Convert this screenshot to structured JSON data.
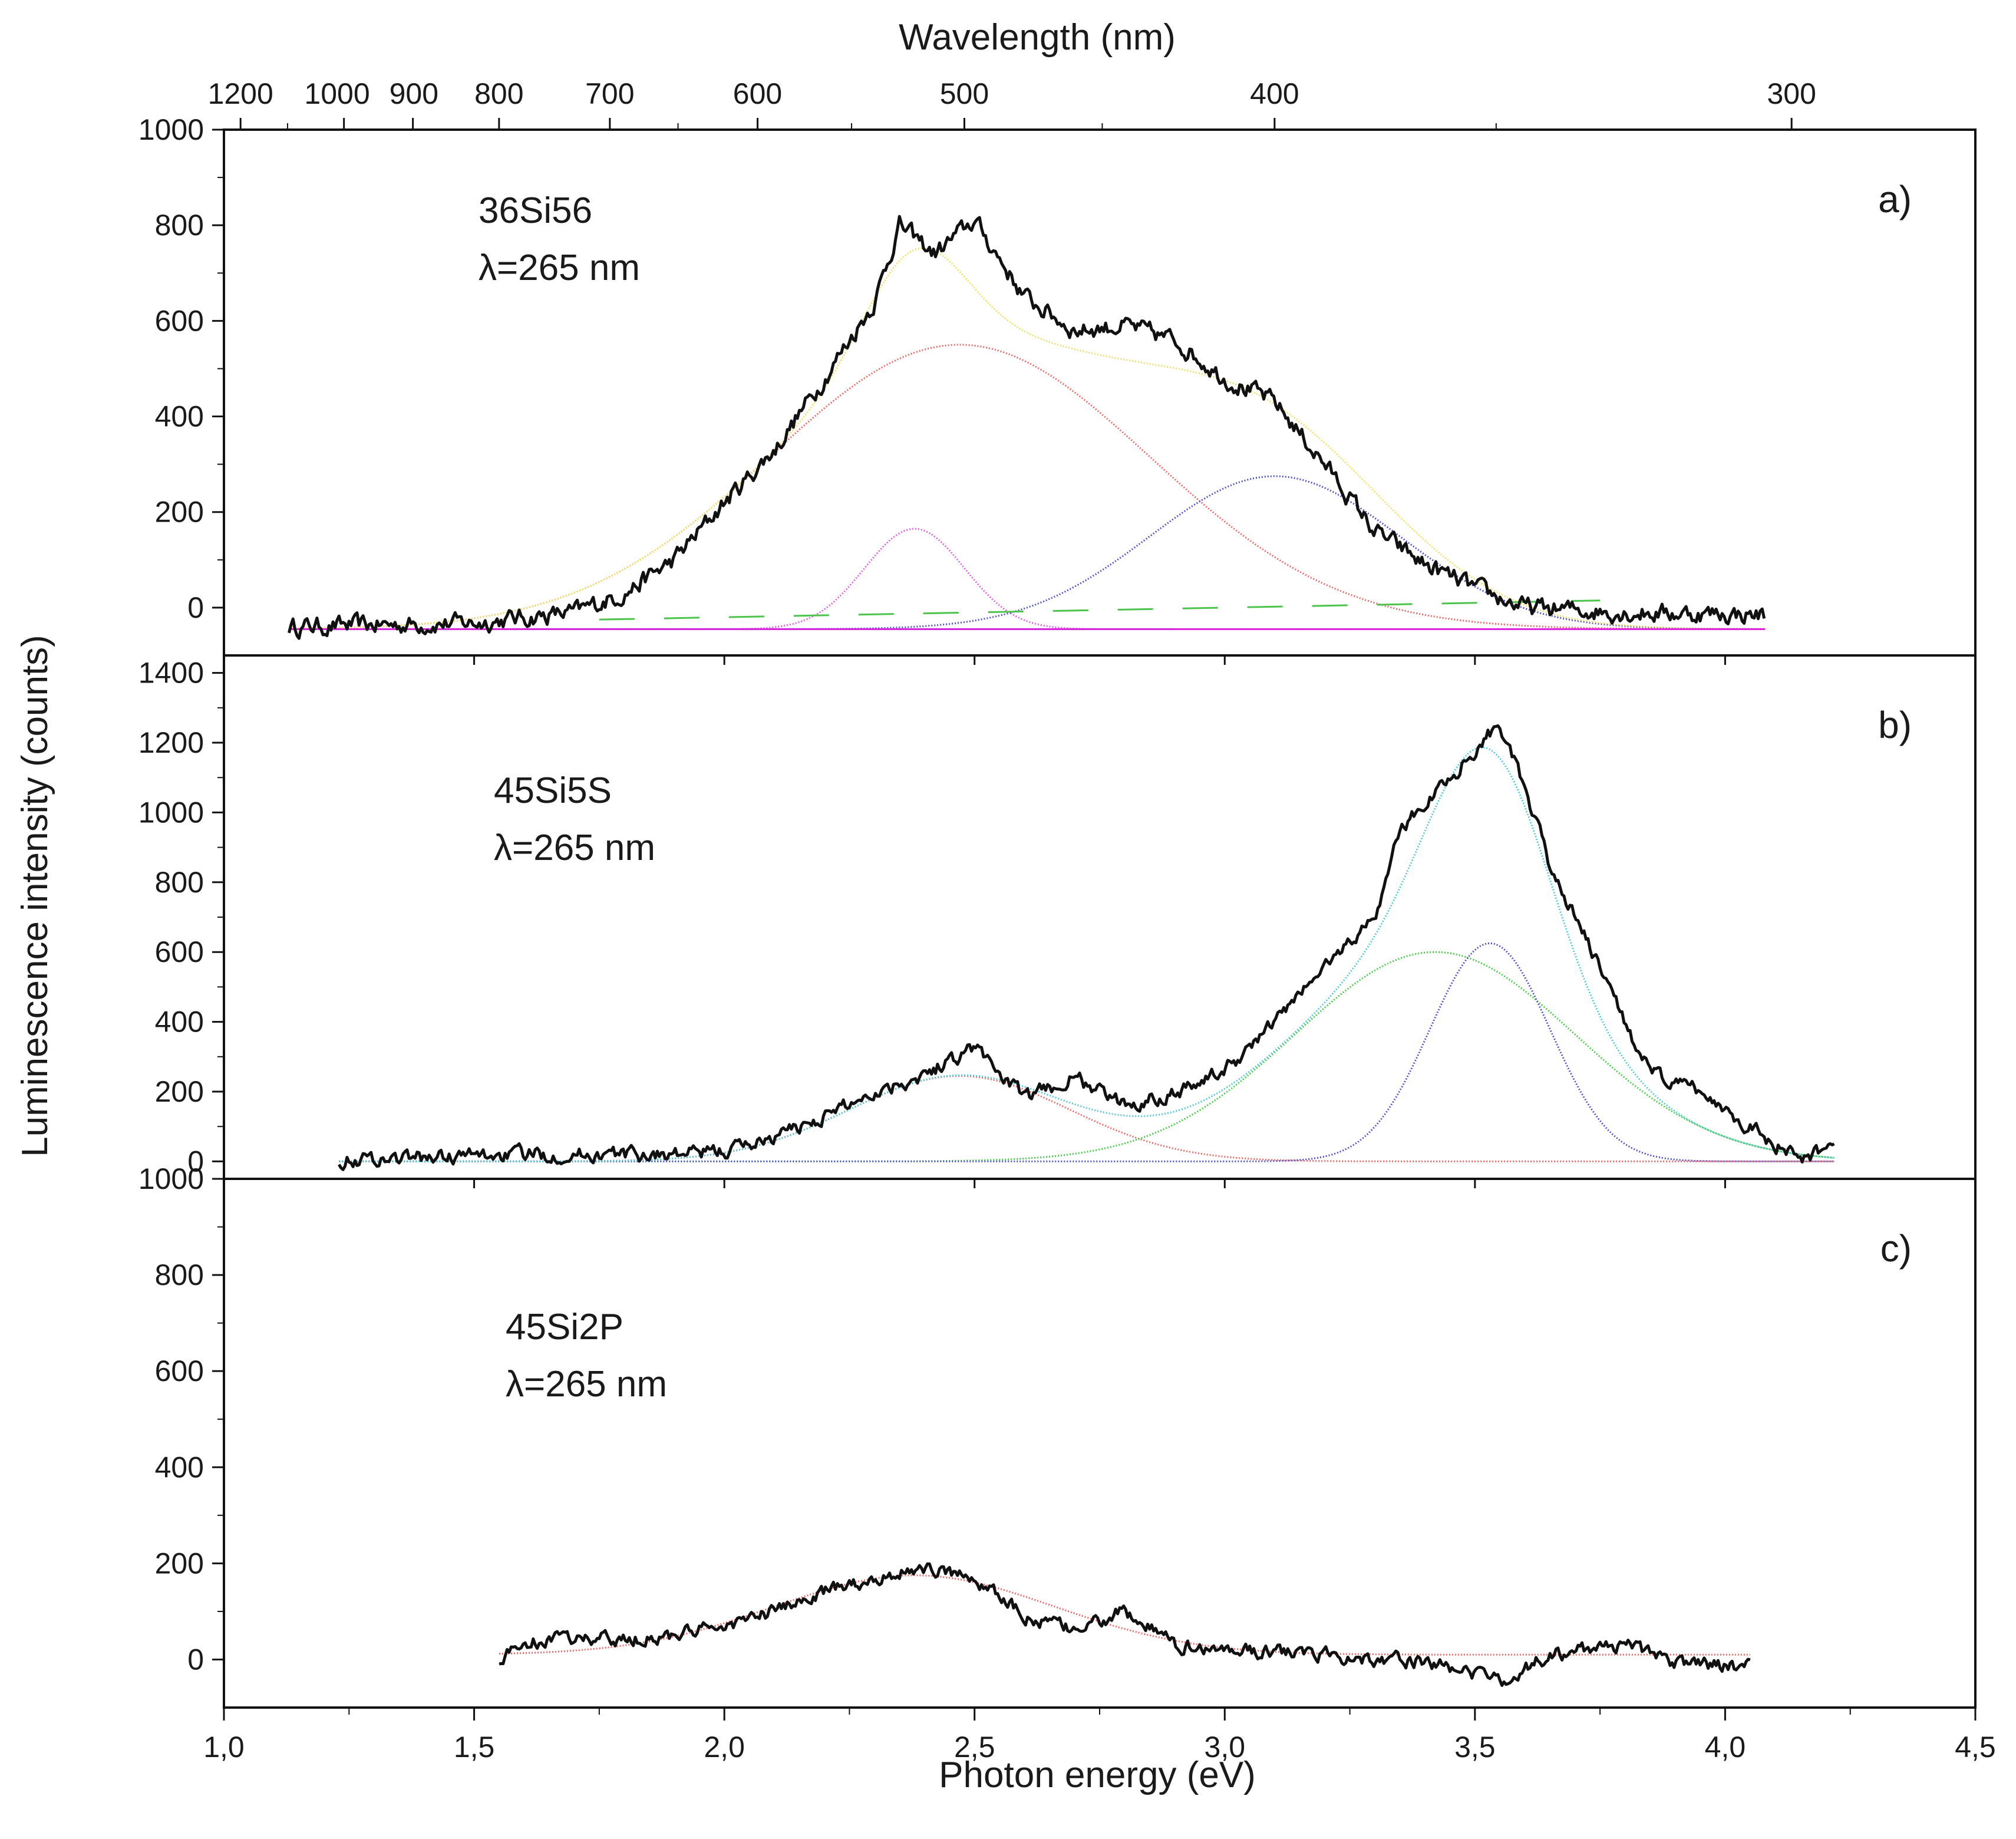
{
  "chart_data": {
    "type": "line",
    "x_axis": {
      "label": "Photon energy (eV)",
      "range": [
        1.0,
        4.5
      ],
      "ticks": [
        "1,0",
        "1,5",
        "2,0",
        "2,5",
        "3,0",
        "3,5",
        "4,0",
        "4,5"
      ],
      "tick_values": [
        1.0,
        1.5,
        2.0,
        2.5,
        3.0,
        3.5,
        4.0,
        4.5
      ]
    },
    "top_axis": {
      "label": "Wavelength (nm)",
      "ticks": [
        {
          "label": "1200",
          "nm": 1200
        },
        {
          "label": "1000",
          "nm": 1000
        },
        {
          "label": "900",
          "nm": 900
        },
        {
          "label": "800",
          "nm": 800
        },
        {
          "label": "700",
          "nm": 700
        },
        {
          "label": "600",
          "nm": 600
        },
        {
          "label": "500",
          "nm": 500
        },
        {
          "label": "400",
          "nm": 400
        },
        {
          "label": "300",
          "nm": 300
        }
      ]
    },
    "y_label": "Luminescence intensity (counts)",
    "panels": [
      {
        "id": "a",
        "panel_label": "a)",
        "sample": "36Si56",
        "excitation": "λ=265 nm",
        "ylim": [
          -100,
          1000
        ],
        "yticks": [
          0,
          200,
          400,
          600,
          800,
          1000
        ],
        "baseline": -45,
        "measured": {
          "name": "measured spectrum",
          "color": "#111111",
          "x_range": [
            1.13,
            4.08
          ],
          "noise_amplitude": 20,
          "points": [
            [
              1.13,
              -40
            ],
            [
              1.5,
              -32
            ],
            [
              1.7,
              -10
            ],
            [
              1.8,
              30
            ],
            [
              1.9,
              100
            ],
            [
              2.0,
              220
            ],
            [
              2.1,
              330
            ],
            [
              2.2,
              480
            ],
            [
              2.3,
              640
            ],
            [
              2.35,
              800
            ],
            [
              2.42,
              740
            ],
            [
              2.5,
              810
            ],
            [
              2.6,
              650
            ],
            [
              2.7,
              580
            ],
            [
              2.8,
              590
            ],
            [
              2.9,
              560
            ],
            [
              3.0,
              480
            ],
            [
              3.1,
              430
            ],
            [
              3.2,
              300
            ],
            [
              3.3,
              160
            ],
            [
              3.4,
              90
            ],
            [
              3.5,
              40
            ],
            [
              3.6,
              0
            ],
            [
              3.7,
              -5
            ],
            [
              3.8,
              -10
            ],
            [
              4.08,
              -15
            ]
          ]
        },
        "fit_components": [
          {
            "name": "Gaussian 1",
            "color": "#ee6666",
            "center_eV": 2.47,
            "amplitude": 595,
            "sigma_eV": 0.38
          },
          {
            "name": "Gaussian 2",
            "color": "#e060e0",
            "center_eV": 2.38,
            "amplitude": 210,
            "sigma_eV": 0.1
          },
          {
            "name": "Gaussian 3",
            "color": "#5050c8",
            "center_eV": 3.1,
            "amplitude": 320,
            "sigma_eV": 0.25
          }
        ],
        "fit_sum": {
          "name": "cumulative fit",
          "color": "#f0e060"
        },
        "extra_lines": [
          {
            "name": "dashed baseline",
            "color": "#4cc44c",
            "points": [
              [
                1.75,
                -25
              ],
              [
                3.75,
                15
              ]
            ],
            "dashed": true
          },
          {
            "name": "cyan baseline",
            "color": "#40d0d0",
            "points": [
              [
                1.6,
                -45
              ],
              [
                2.9,
                -45
              ]
            ],
            "dashed": false
          },
          {
            "name": "magenta baseline",
            "color": "#dd22dd",
            "points": [
              [
                1.13,
                -45
              ],
              [
                4.08,
                -45
              ]
            ],
            "dashed": false
          }
        ]
      },
      {
        "id": "b",
        "panel_label": "b)",
        "sample": "45Si5S",
        "excitation": "λ=265 nm",
        "ylim": [
          -50,
          1450
        ],
        "yticks": [
          0,
          200,
          400,
          600,
          800,
          1000,
          1200,
          1400
        ],
        "baseline": 0,
        "measured": {
          "name": "measured spectrum",
          "color": "#111111",
          "x_range": [
            1.23,
            4.22
          ],
          "noise_amplitude": 22,
          "points": [
            [
              1.23,
              5
            ],
            [
              1.6,
              20
            ],
            [
              1.9,
              20
            ],
            [
              2.0,
              30
            ],
            [
              2.1,
              70
            ],
            [
              2.2,
              130
            ],
            [
              2.3,
              200
            ],
            [
              2.4,
              250
            ],
            [
              2.5,
              330
            ],
            [
              2.6,
              180
            ],
            [
              2.7,
              240
            ],
            [
              2.8,
              160
            ],
            [
              2.9,
              200
            ],
            [
              3.0,
              260
            ],
            [
              3.1,
              400
            ],
            [
              3.2,
              560
            ],
            [
              3.3,
              700
            ],
            [
              3.35,
              950
            ],
            [
              3.45,
              1100
            ],
            [
              3.55,
              1260
            ],
            [
              3.65,
              850
            ],
            [
              3.75,
              550
            ],
            [
              3.85,
              250
            ],
            [
              3.95,
              200
            ],
            [
              4.05,
              100
            ],
            [
              4.15,
              0
            ],
            [
              4.22,
              50
            ]
          ]
        },
        "fit_components": [
          {
            "name": "Gaussian 1",
            "color": "#ee6666",
            "center_eV": 2.47,
            "amplitude": 245,
            "sigma_eV": 0.22
          },
          {
            "name": "Gaussian 2",
            "color": "#44cc44",
            "center_eV": 3.42,
            "amplitude": 600,
            "sigma_eV": 0.28
          },
          {
            "name": "Gaussian 3",
            "color": "#5050c8",
            "center_eV": 3.53,
            "amplitude": 625,
            "sigma_eV": 0.12
          }
        ],
        "fit_sum": {
          "name": "cumulative fit",
          "color": "#50c8d8"
        },
        "extra_lines": []
      },
      {
        "id": "c",
        "panel_label": "c)",
        "sample": "45Si2P",
        "excitation": "λ=265 nm",
        "ylim": [
          -100,
          1000
        ],
        "yticks": [
          0,
          200,
          400,
          600,
          800,
          1000
        ],
        "baseline": 10,
        "measured": {
          "name": "measured spectrum",
          "color": "#111111",
          "x_range": [
            1.55,
            4.05
          ],
          "noise_amplitude": 15,
          "points": [
            [
              1.55,
              0
            ],
            [
              1.6,
              35
            ],
            [
              1.7,
              45
            ],
            [
              1.8,
              40
            ],
            [
              1.9,
              50
            ],
            [
              2.0,
              70
            ],
            [
              2.1,
              100
            ],
            [
              2.2,
              140
            ],
            [
              2.3,
              170
            ],
            [
              2.4,
              190
            ],
            [
              2.5,
              170
            ],
            [
              2.6,
              90
            ],
            [
              2.7,
              60
            ],
            [
              2.8,
              100
            ],
            [
              2.9,
              30
            ],
            [
              3.0,
              20
            ],
            [
              3.2,
              10
            ],
            [
              3.4,
              -5
            ],
            [
              3.55,
              -45
            ],
            [
              3.65,
              10
            ],
            [
              3.8,
              30
            ],
            [
              3.9,
              -5
            ],
            [
              4.05,
              -15
            ]
          ]
        },
        "fit_components": [
          {
            "name": "Gaussian 1",
            "color": "#ee6666",
            "center_eV": 2.38,
            "amplitude": 165,
            "sigma_eV": 0.28
          }
        ],
        "fit_sum": null,
        "extra_lines": []
      }
    ]
  }
}
